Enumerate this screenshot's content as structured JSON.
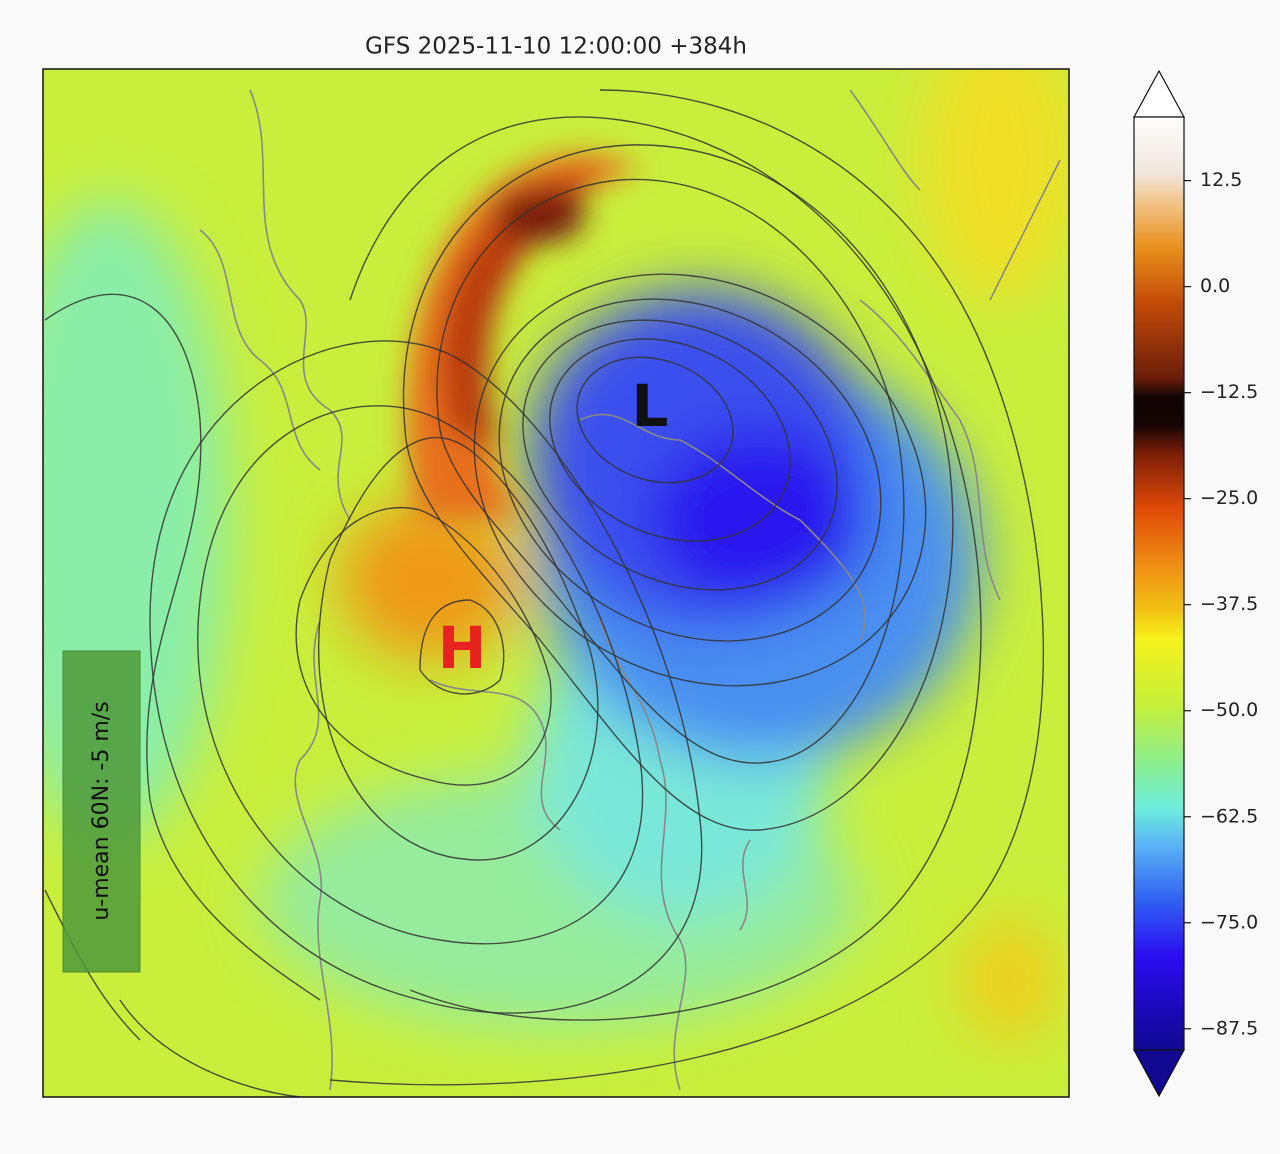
{
  "title": "GFS 2025-11-10 12:00:00 +384h",
  "low_label": "L",
  "high_label": "H",
  "annotation": "u-mean 60N: -5 m/s",
  "colorbar": {
    "lim": [
      -90,
      20
    ],
    "ticks": [
      12.5,
      {
        "value": 0,
        "label": "0.0"
      },
      {
        "value": -12.5,
        "label": "−12.5"
      },
      {
        "value": -25,
        "label": "−25.0"
      },
      {
        "value": -37.5,
        "label": "−37.5"
      },
      {
        "value": -50,
        "label": "−50.0"
      },
      {
        "value": -62.5,
        "label": "−62.5"
      },
      {
        "value": -75,
        "label": "−75.0"
      },
      {
        "value": -87.5,
        "label": "−87.5"
      }
    ]
  }
}
